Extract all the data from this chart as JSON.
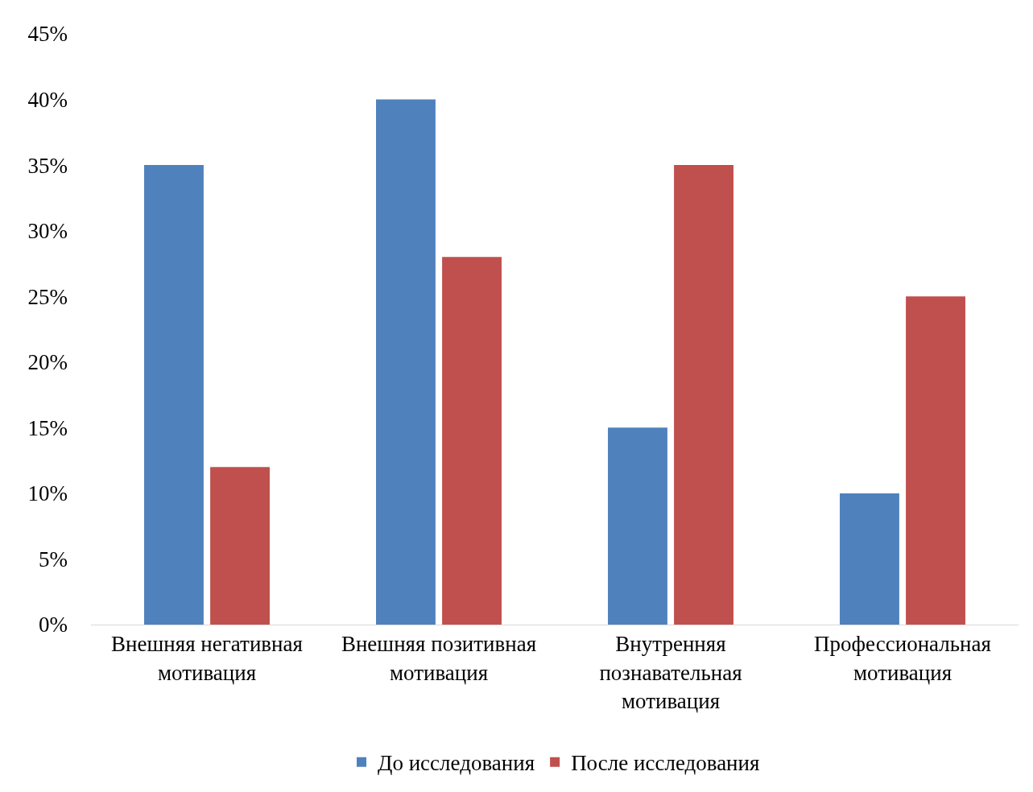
{
  "chart_data": {
    "type": "bar",
    "categories": [
      "Внешняя негативная мотивация",
      "Внешняя позитивная мотивация",
      "Внутренняя познавательная мотивация",
      "Профессиональная мотивация"
    ],
    "series": [
      {
        "name": "До исследования",
        "color": "#4f81bd",
        "values": [
          35,
          40,
          15,
          10
        ]
      },
      {
        "name": "После исследования",
        "color": "#c0504d",
        "values": [
          12,
          28,
          35,
          25
        ]
      }
    ],
    "ylim": [
      0,
      45
    ],
    "yticks": [
      {
        "value": 0,
        "label": "0%"
      },
      {
        "value": 5,
        "label": "5%"
      },
      {
        "value": 10,
        "label": "10%"
      },
      {
        "value": 15,
        "label": "15%"
      },
      {
        "value": 20,
        "label": "20%"
      },
      {
        "value": 25,
        "label": "25%"
      },
      {
        "value": 30,
        "label": "30%"
      },
      {
        "value": 35,
        "label": "35%"
      },
      {
        "value": 40,
        "label": "40%"
      },
      {
        "value": 45,
        "label": "45%"
      }
    ],
    "grid": false,
    "legend": "bottom"
  }
}
